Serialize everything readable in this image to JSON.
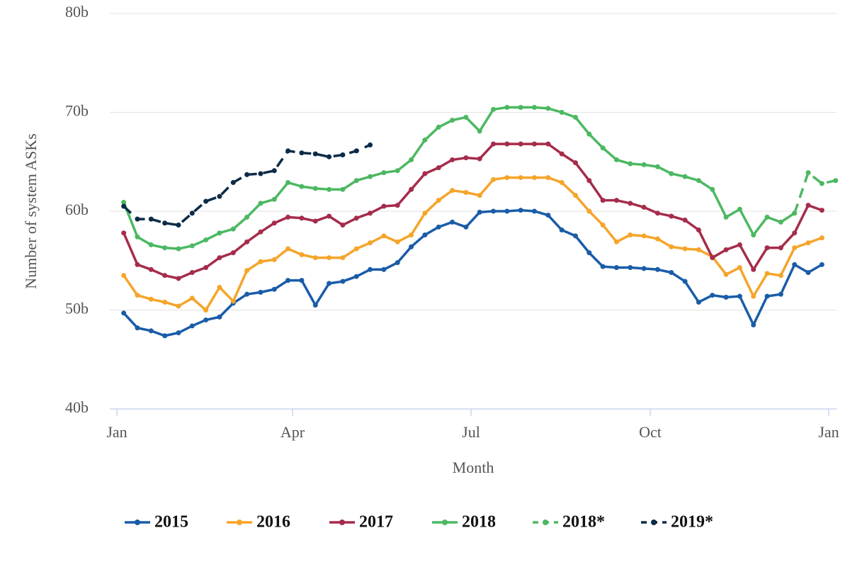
{
  "chart_data": {
    "type": "line",
    "xlabel": "Month",
    "ylabel": "Number of system ASKs",
    "x": [
      0.5,
      1.5,
      2.5,
      3.5,
      4.5,
      5.5,
      6.5,
      7.5,
      8.5,
      9.5,
      10.5,
      11.5,
      12.5,
      13.5,
      14.5,
      15.5,
      16.5,
      17.5,
      18.5,
      19.5,
      20.5,
      21.5,
      22.5,
      23.5,
      24.5,
      25.5,
      26.5,
      27.5,
      28.5,
      29.5,
      30.5,
      31.5,
      32.5,
      33.5,
      34.5,
      35.5,
      36.5,
      37.5,
      38.5,
      39.5,
      40.5,
      41.5,
      42.5,
      43.5,
      44.5,
      45.5,
      46.5,
      47.5,
      48.5,
      49.5,
      50.5,
      51.5,
      52.5
    ],
    "xlim": [
      0,
      53
    ],
    "xticks": [
      {
        "value": 0,
        "label": "Jan"
      },
      {
        "value": 12.83,
        "label": "Apr"
      },
      {
        "value": 25.87,
        "label": "Jul"
      },
      {
        "value": 38.96,
        "label": "Oct"
      },
      {
        "value": 52,
        "label": "Jan"
      }
    ],
    "ylim": [
      40,
      80
    ],
    "yticks": [
      {
        "value": 40,
        "label": "40b"
      },
      {
        "value": 50,
        "label": "50b"
      },
      {
        "value": 60,
        "label": "60b"
      },
      {
        "value": 70,
        "label": "70b"
      },
      {
        "value": 80,
        "label": "80b"
      }
    ],
    "grid": true,
    "legend": "bottom",
    "series": [
      {
        "name": "2015",
        "color": "#1a5ca8",
        "dash": false,
        "values": [
          49.7,
          48.2,
          47.9,
          47.4,
          47.7,
          48.4,
          49.0,
          49.3,
          50.7,
          51.6,
          51.8,
          52.1,
          53.0,
          53.0,
          50.5,
          52.7,
          52.9,
          53.4,
          54.1,
          54.1,
          54.8,
          56.4,
          57.6,
          58.4,
          58.9,
          58.4,
          59.9,
          60.0,
          60.0,
          60.1,
          60.0,
          59.6,
          58.1,
          57.5,
          55.8,
          54.4,
          54.3,
          54.3,
          54.2,
          54.1,
          53.8,
          52.9,
          50.8,
          51.5,
          51.3,
          51.4,
          48.5,
          51.4,
          51.6,
          54.6,
          53.8,
          54.6,
          null
        ]
      },
      {
        "name": "2016",
        "color": "#f5a52a",
        "dash": false,
        "values": [
          53.5,
          51.5,
          51.1,
          50.8,
          50.4,
          51.2,
          50.0,
          52.3,
          50.9,
          54.0,
          54.9,
          55.1,
          56.2,
          55.6,
          55.3,
          55.3,
          55.3,
          56.2,
          56.8,
          57.5,
          56.9,
          57.6,
          59.8,
          61.1,
          62.1,
          61.9,
          61.6,
          63.2,
          63.4,
          63.4,
          63.4,
          63.4,
          62.9,
          61.6,
          60.0,
          58.6,
          56.9,
          57.6,
          57.5,
          57.2,
          56.4,
          56.2,
          56.1,
          55.4,
          53.6,
          54.3,
          51.4,
          53.7,
          53.5,
          56.3,
          56.8,
          57.3,
          null
        ]
      },
      {
        "name": "2017",
        "color": "#a52c4b",
        "dash": false,
        "values": [
          57.8,
          54.6,
          54.1,
          53.5,
          53.2,
          53.8,
          54.3,
          55.3,
          55.8,
          56.9,
          57.9,
          58.8,
          59.4,
          59.3,
          59.0,
          59.5,
          58.6,
          59.3,
          59.8,
          60.5,
          60.6,
          62.2,
          63.8,
          64.4,
          65.2,
          65.4,
          65.3,
          66.8,
          66.8,
          66.8,
          66.8,
          66.8,
          65.8,
          64.9,
          63.1,
          61.1,
          61.1,
          60.8,
          60.4,
          59.8,
          59.5,
          59.1,
          58.1,
          55.3,
          56.1,
          56.6,
          54.1,
          56.3,
          56.3,
          57.8,
          60.6,
          60.1,
          null
        ]
      },
      {
        "name": "2018",
        "color": "#4cb862",
        "dash": false,
        "values": [
          60.9,
          57.4,
          56.6,
          56.3,
          56.2,
          56.5,
          57.1,
          57.8,
          58.2,
          59.4,
          60.8,
          61.2,
          62.9,
          62.5,
          62.3,
          62.2,
          62.2,
          63.1,
          63.5,
          63.9,
          64.1,
          65.2,
          67.2,
          68.5,
          69.2,
          69.5,
          68.1,
          70.3,
          70.5,
          70.5,
          70.5,
          70.4,
          70.0,
          69.5,
          67.8,
          66.4,
          65.2,
          64.8,
          64.7,
          64.5,
          63.8,
          63.5,
          63.1,
          62.2,
          59.4,
          60.2,
          57.6,
          59.4,
          58.9,
          59.8,
          null,
          null,
          null
        ]
      },
      {
        "name": "2018*",
        "color": "#4cb862",
        "dash": true,
        "values": [
          null,
          null,
          null,
          null,
          null,
          null,
          null,
          null,
          null,
          null,
          null,
          null,
          null,
          null,
          null,
          null,
          null,
          null,
          null,
          null,
          null,
          null,
          null,
          null,
          null,
          null,
          null,
          null,
          null,
          null,
          null,
          null,
          null,
          null,
          null,
          null,
          null,
          null,
          null,
          null,
          null,
          null,
          null,
          null,
          null,
          null,
          null,
          null,
          null,
          59.8,
          63.9,
          62.8,
          63.1
        ]
      },
      {
        "name": "2019*",
        "color": "#0c2b47",
        "dash": true,
        "values": [
          60.5,
          59.2,
          59.2,
          58.8,
          58.6,
          59.8,
          61.0,
          61.5,
          62.9,
          63.7,
          63.8,
          64.1,
          66.1,
          65.9,
          65.8,
          65.5,
          65.7,
          66.1,
          66.7,
          null,
          null,
          null,
          null,
          null,
          null,
          null,
          null,
          null,
          null,
          null,
          null,
          null,
          null,
          null,
          null,
          null,
          null,
          null,
          null,
          null,
          null,
          null,
          null,
          null,
          null,
          null,
          null,
          null,
          null,
          null,
          null,
          null,
          null
        ]
      }
    ]
  }
}
